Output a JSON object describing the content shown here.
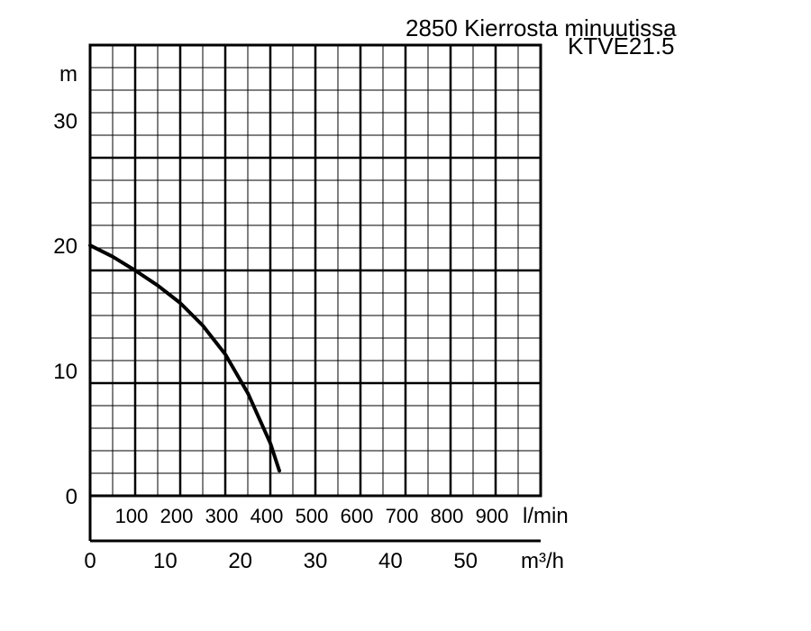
{
  "chart_data": {
    "type": "line",
    "title": "2850 Kierrosta minuutissa",
    "subtitle": "KTVE21.5",
    "ylabel": "m",
    "ylim": [
      0,
      36
    ],
    "y_ticks": [
      "0",
      "10",
      "20",
      "30"
    ],
    "x_lpm_unit": "l/min",
    "x_lpm_ticks": [
      "100",
      "200",
      "300",
      "400",
      "500",
      "600",
      "700",
      "800",
      "900"
    ],
    "x_lpm_range": [
      0,
      1000
    ],
    "x_m3h_unit": "m³/h",
    "x_m3h_ticks": [
      "0",
      "10",
      "20",
      "30",
      "40",
      "50"
    ],
    "x_m3h_range": [
      0,
      60
    ],
    "grid": true,
    "series": [
      {
        "x": [
          0,
          50,
          100,
          150,
          200,
          250,
          300,
          350,
          400,
          420
        ],
        "y": [
          20,
          19.1,
          18,
          16.8,
          15.4,
          13.6,
          11.3,
          8.2,
          4.2,
          2
        ]
      }
    ]
  }
}
